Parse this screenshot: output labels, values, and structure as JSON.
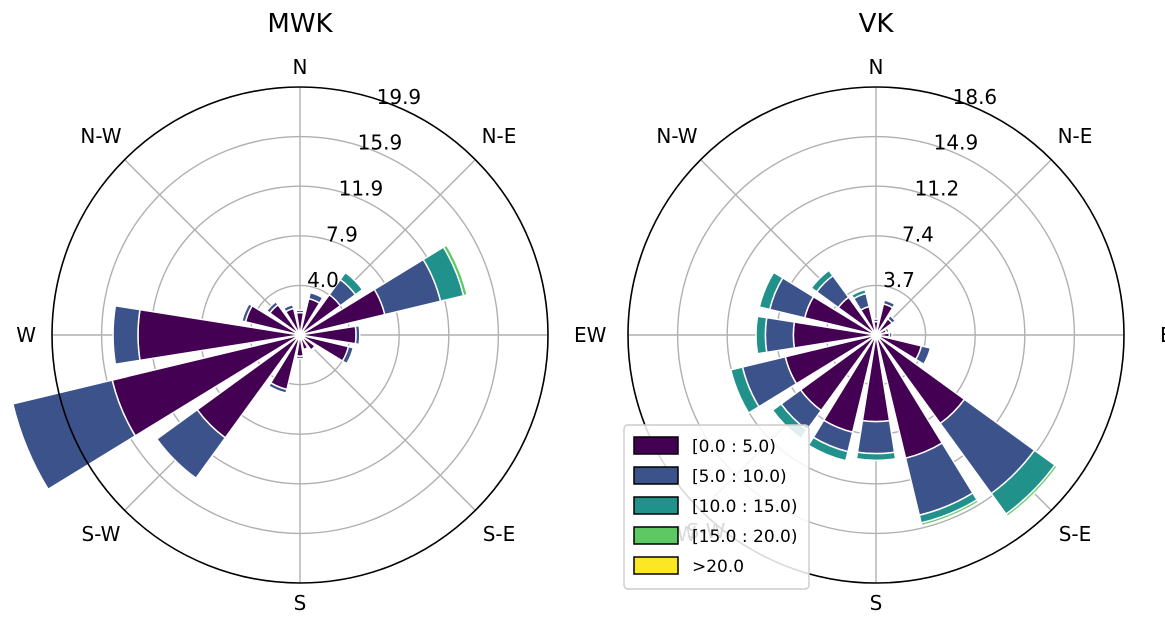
{
  "chart_data": [
    {
      "type": "windrose",
      "title": "MWK",
      "directions": [
        "N",
        "N-E",
        "E",
        "S-E",
        "S",
        "S-W",
        "W",
        "N-W"
      ],
      "radial_ticks": [
        "4.0",
        "7.9",
        "11.9",
        "15.9",
        "19.9"
      ],
      "r_max": 19.9,
      "sector_angles_deg": [
        0,
        22.5,
        45,
        67.5,
        90,
        112.5,
        135,
        157.5,
        180,
        202.5,
        225,
        247.5,
        270,
        292.5,
        315,
        337.5
      ],
      "bins": [
        "[0.0 : 5.0)",
        "[5.0 : 10.0)",
        "[10.0 : 15.0)",
        "[15.0 : 20.0)",
        ">20.0"
      ],
      "colors": [
        "#440154",
        "#3b528b",
        "#21918c",
        "#5ec962",
        "#fde725"
      ],
      "values": [
        [
          4.5,
          0.3,
          0.0,
          0.0,
          0.0
        ],
        [
          7.0,
          4.6,
          1.9,
          0.3,
          0.0
        ],
        [
          4.0,
          1.5,
          0.7,
          0.0,
          0.0
        ],
        [
          3.0,
          0.5,
          0.0,
          0.0,
          0.0
        ],
        [
          1.8,
          0.2,
          0.0,
          0.0,
          0.0
        ],
        [
          2.2,
          0.3,
          0.0,
          0.0,
          0.0
        ],
        [
          3.0,
          0.3,
          0.0,
          0.0,
          0.0
        ],
        [
          4.5,
          0.3,
          0.0,
          0.0,
          0.0
        ],
        [
          13.0,
          2.0,
          0.0,
          0.0,
          0.0
        ],
        [
          15.5,
          8.2,
          0.0,
          0.0,
          0.0
        ],
        [
          10.2,
          4.0,
          0.0,
          0.0,
          0.0
        ],
        [
          4.5,
          0.3,
          0.0,
          0.0,
          0.0
        ],
        [
          1.7,
          0.2,
          0.0,
          0.0,
          0.0
        ],
        [
          1.2,
          0.1,
          0.0,
          0.0,
          0.0
        ],
        [
          1.5,
          0.1,
          0.0,
          0.0,
          0.0
        ],
        [
          4.0,
          0.4,
          0.0,
          0.0,
          0.0
        ]
      ]
    },
    {
      "type": "windrose",
      "title": "VK",
      "directions": [
        "N",
        "N-E",
        "E",
        "S-E",
        "S",
        "S-W",
        "W",
        "N-W"
      ],
      "radial_ticks": [
        "3.7",
        "7.4",
        "11.2",
        "14.9",
        "18.6"
      ],
      "r_max": 18.6,
      "sector_angles_deg": [
        0,
        22.5,
        45,
        67.5,
        90,
        112.5,
        135,
        157.5,
        180,
        202.5,
        225,
        247.5,
        270,
        292.5,
        315,
        337.5
      ],
      "bins": [
        "[0.0 : 5.0)",
        "[5.0 : 10.0)",
        "[10.0 : 15.0)",
        "[15.0 : 20.0)",
        ">20.0"
      ],
      "colors": [
        "#440154",
        "#3b528b",
        "#21918c",
        "#5ec962",
        "#fde725"
      ],
      "values": [
        [
          1.0,
          0.2,
          0.0,
          0.0,
          0.0
        ],
        [
          0.8,
          0.2,
          0.0,
          0.0,
          0.0
        ],
        [
          1.5,
          0.3,
          0.0,
          0.0,
          0.0
        ],
        [
          2.4,
          0.3,
          0.0,
          0.0,
          0.0
        ],
        [
          1.0,
          0.2,
          0.0,
          0.0,
          0.0
        ],
        [
          2.2,
          1.0,
          0.3,
          0.0,
          0.0
        ],
        [
          3.5,
          2.0,
          0.5,
          0.0,
          0.0
        ],
        [
          5.5,
          2.7,
          0.8,
          0.0,
          0.0
        ],
        [
          6.2,
          2.1,
          0.7,
          0.0,
          0.0
        ],
        [
          7.0,
          3.3,
          0.9,
          0.0,
          0.0
        ],
        [
          7.0,
          1.8,
          0.8,
          0.0,
          0.0
        ],
        [
          7.5,
          1.5,
          0.7,
          0.0,
          0.0
        ],
        [
          6.5,
          2.4,
          0.5,
          0.0,
          0.0
        ],
        [
          9.5,
          4.4,
          0.6,
          0.2,
          0.0
        ],
        [
          8.2,
          6.5,
          1.9,
          0.2,
          0.0
        ],
        [
          3.5,
          0.7,
          0.0,
          0.0,
          0.0
        ]
      ],
      "legend": {
        "placement": "lower-left",
        "entries": [
          "[0.0 : 5.0)",
          "[5.0 : 10.0)",
          "[10.0 : 15.0)",
          "[15.0 : 20.0)",
          ">20.0"
        ]
      }
    }
  ]
}
